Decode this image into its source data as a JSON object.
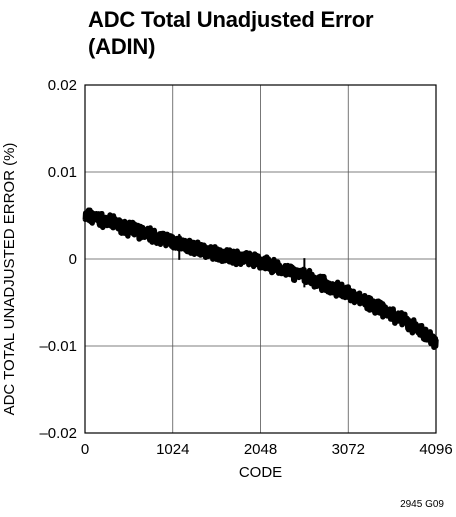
{
  "chart_data": {
    "type": "line",
    "title": "ADC Total Unadjusted Error\n(ADIN)",
    "xlabel": "CODE",
    "ylabel": "ADC TOTAL UNADJUSTED ERROR (%)",
    "xlim": [
      0,
      4096
    ],
    "ylim": [
      -0.02,
      0.02
    ],
    "x_ticks": [
      0,
      1024,
      2048,
      3072,
      4096
    ],
    "x_tick_labels": [
      "0",
      "1024",
      "2048",
      "3072",
      "4096"
    ],
    "y_ticks": [
      0.02,
      0.01,
      0,
      -0.01,
      -0.02
    ],
    "y_tick_labels": [
      "0.02",
      "0.01",
      "0",
      "–0.01",
      "–0.02"
    ],
    "grid": true,
    "series": [
      {
        "x": [
          0,
          128,
          256,
          384,
          512,
          640,
          768,
          896,
          1024,
          1152,
          1280,
          1408,
          1536,
          1664,
          1792,
          1920,
          2048,
          2176,
          2304,
          2432,
          2560,
          2688,
          2816,
          2944,
          3072,
          3200,
          3328,
          3456,
          3584,
          3712,
          3840,
          3968,
          4096
        ],
        "y": [
          0.005,
          0.0047,
          0.0043,
          0.0039,
          0.0035,
          0.0031,
          0.0028,
          0.0024,
          0.002,
          0.0016,
          0.0012,
          0.0009,
          0.0006,
          0.0004,
          0.0002,
          0.0,
          -0.0003,
          -0.0008,
          -0.0012,
          -0.0016,
          -0.002,
          -0.0025,
          -0.003,
          -0.0035,
          -0.004,
          -0.0046,
          -0.0052,
          -0.0058,
          -0.0064,
          -0.0071,
          -0.0078,
          -0.0086,
          -0.0095
        ],
        "spikes": [
          {
            "x": 1100,
            "y": -0.0001
          },
          {
            "x": 1850,
            "y": 0.0003
          },
          {
            "x": 2560,
            "y": 0.0001
          }
        ]
      }
    ],
    "figure_code": "2945 G09"
  }
}
